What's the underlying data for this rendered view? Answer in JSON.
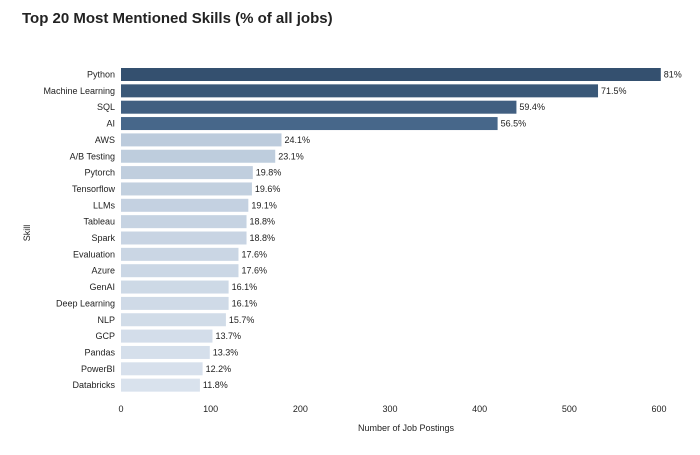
{
  "chart_data": {
    "type": "bar",
    "orientation": "horizontal",
    "title": "Top 20 Most Mentioned Skills (% of all jobs)",
    "xlabel": "Number of Job Postings",
    "ylabel": "Skill",
    "xlim": [
      0,
      600
    ],
    "xticks": [
      0,
      100,
      200,
      300,
      400,
      500,
      600
    ],
    "grid": false,
    "categories": [
      "Python",
      "Machine Learning",
      "SQL",
      "AI",
      "AWS",
      "A/B Testing",
      "Pytorch",
      "Tensorflow",
      "LLMs",
      "Tableau",
      "Spark",
      "Evaluation",
      "Azure",
      "GenAI",
      "Deep Learning",
      "NLP",
      "GCP",
      "Pandas",
      "PowerBI",
      "Databricks"
    ],
    "values": [
      602,
      532,
      441,
      420,
      179,
      172,
      147,
      146,
      142,
      140,
      140,
      131,
      131,
      120,
      120,
      117,
      102,
      99,
      91,
      88
    ],
    "data_labels": [
      "81%",
      "71.5%",
      "59.4%",
      "56.5%",
      "24.1%",
      "23.1%",
      "19.8%",
      "19.6%",
      "19.1%",
      "18.8%",
      "18.8%",
      "17.6%",
      "17.6%",
      "16.1%",
      "16.1%",
      "15.7%",
      "13.7%",
      "13.3%",
      "12.2%",
      "11.8%"
    ],
    "colors": {
      "top_bar": "#34506f",
      "high_bar": "#47678a",
      "low_bar_dark": "#bccbdc",
      "low_bar_light": "#d9e2ed",
      "text": "#222222"
    }
  }
}
